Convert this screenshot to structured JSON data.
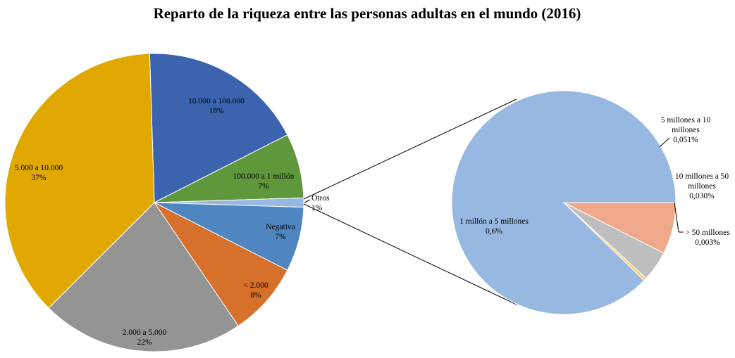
{
  "chart_data": {
    "type": "pie",
    "title": "Reparto de la riqueza entre las personas adultas en el mundo (2016)",
    "main_pie": {
      "slices": [
        {
          "name": "10.000 a 100.000",
          "value": 18,
          "label": "18%",
          "color": "#3C64AE"
        },
        {
          "name": "100.000 a 1 millón",
          "value": 7,
          "label": "7%",
          "color": "#5E983A"
        },
        {
          "name": "Otros",
          "value": 1,
          "label": "1%",
          "color": "#97B8E0"
        },
        {
          "name": "Negativa",
          "value": 7,
          "label": "7%",
          "color": "#4F86C1"
        },
        {
          "name": "< 2.000",
          "value": 8,
          "label": "8%",
          "color": "#D6702B"
        },
        {
          "name": "2.000 a 5.000",
          "value": 22,
          "label": "22%",
          "color": "#949494"
        },
        {
          "name": "5.000 a 10.000",
          "value": 37,
          "label": "37%",
          "color": "#E0A800"
        }
      ]
    },
    "secondary_pie": {
      "of": "Otros",
      "slices": [
        {
          "name": "1 millón a 5 millones",
          "value": 0.6,
          "label": "0,6%",
          "color": "#97B8E0"
        },
        {
          "name": "5 millones a 10 millones",
          "value": 0.051,
          "label": "0,051%",
          "color": "#EFA98A"
        },
        {
          "name": "10 millones a 50 millones",
          "value": 0.03,
          "label": "0,030%",
          "color": "#BEBEBE"
        },
        {
          "name": "> 50 millones",
          "value": 0.003,
          "label": "0,003%",
          "color": "#F7CF7C"
        }
      ]
    }
  }
}
